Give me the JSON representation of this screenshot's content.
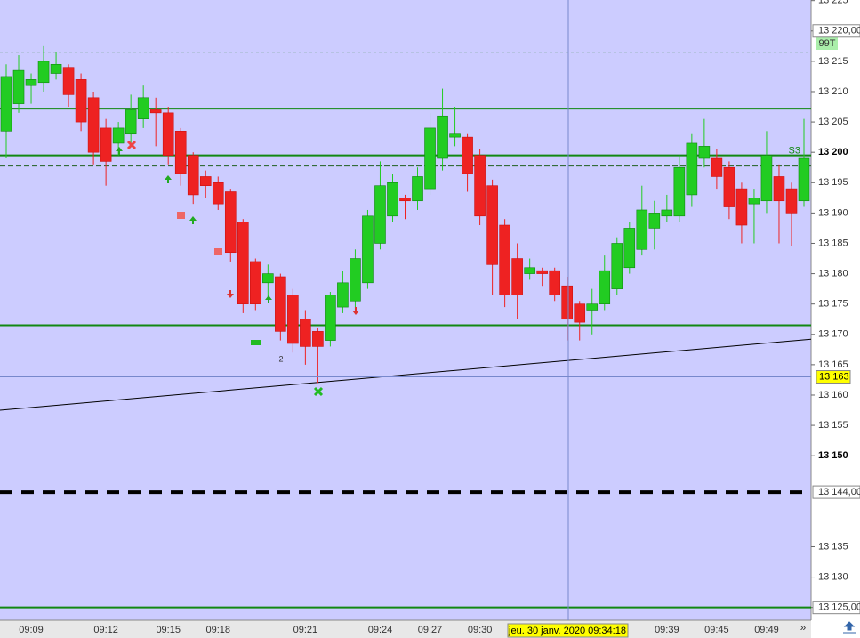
{
  "chart_data": {
    "type": "candlestick",
    "bar_period": "99T",
    "up_color": "#22cc22",
    "down_color": "#ee2222",
    "categories": [
      null,
      null,
      "09:09",
      null,
      null,
      null,
      null,
      null,
      "09:12",
      null,
      null,
      null,
      null,
      "09:15",
      null,
      null,
      null,
      "09:18",
      null,
      null,
      null,
      null,
      null,
      null,
      "09:21",
      null,
      null,
      null,
      null,
      null,
      "09:24",
      null,
      null,
      null,
      "09:27",
      null,
      null,
      null,
      "09:30",
      null,
      null,
      null,
      null,
      null,
      null,
      null,
      null,
      null,
      null,
      null,
      null,
      null,
      null,
      "09:39",
      null,
      null,
      null,
      "09:45",
      null,
      null,
      null,
      "09:49",
      null,
      null,
      null
    ],
    "open": [
      13203.5,
      13208,
      13211,
      13211.5,
      13213,
      13214,
      13212,
      13209,
      13204,
      13201.5,
      13203,
      13205.5,
      13207,
      13206.5,
      13203.5,
      13199.5,
      13196,
      13195,
      13193.5,
      13188.5,
      13182,
      13178.5,
      13179.5,
      13176.5,
      13172.5,
      13170.5,
      13169,
      13174.5,
      13175.5,
      13178.5,
      13185,
      13189.5,
      13192.5,
      13192,
      13194,
      13199,
      13202.5,
      13202.5,
      13199.5,
      13194.5,
      13188,
      13182.5,
      13180,
      13180.5,
      13180.5,
      13178,
      13175,
      13174,
      13175,
      13177.5,
      13181,
      13184,
      13187.5,
      13189.5,
      13189.5,
      13193,
      13199,
      13199,
      13197.5,
      13194,
      13191.5,
      13192,
      13196,
      13194,
      13192
    ],
    "high": [
      13214.5,
      13216,
      13213,
      13217.5,
      13216.5,
      13214.5,
      13213,
      13210,
      13205.5,
      13205,
      13209.5,
      13211,
      13209,
      13207.5,
      13204,
      13200,
      13197,
      13196,
      13194,
      13189,
      13182.5,
      13181.5,
      13180,
      13177.5,
      13174,
      13171,
      13177,
      13180.5,
      13184,
      13190.5,
      13198.5,
      13196.5,
      13193,
      13197.5,
      13206.5,
      13210.5,
      13207.5,
      13203,
      13200.5,
      13195.5,
      13189,
      13185,
      13182.5,
      13181,
      13181,
      13179.5,
      13175.5,
      13177.5,
      13183,
      13186,
      13188.5,
      13194.5,
      13192,
      13193,
      13199.5,
      13203,
      13205.5,
      13200.5,
      13198.5,
      13195,
      13194,
      13203.5,
      13198,
      13195,
      13205.5
    ],
    "low": [
      13199,
      13206.5,
      13208,
      13210,
      13212,
      13207.5,
      13203.5,
      13198,
      13194.5,
      13199.5,
      13201,
      13204,
      13201,
      13198,
      13194.5,
      13191.5,
      13192.5,
      13190.5,
      13182,
      13173.5,
      13174,
      13176,
      13169,
      13167,
      13165,
      13162,
      13168,
      13173.5,
      13174,
      13177.5,
      13184,
      13188.5,
      13189,
      13190.5,
      13193,
      13197,
      13201,
      13193.5,
      13188,
      13176.5,
      13174.5,
      13172.5,
      13179,
      13178,
      13175.5,
      13169,
      13169,
      13170,
      13174,
      13176.5,
      13180,
      13183,
      13184,
      13188.5,
      13188.5,
      13191,
      13197.5,
      13194,
      13189,
      13185,
      13185,
      13190,
      13185,
      13184.5,
      13191
    ],
    "close": [
      13212.5,
      13213.5,
      13212,
      13215,
      13214.5,
      13209.5,
      13205,
      13200,
      13198.5,
      13204,
      13207,
      13209,
      13206.5,
      13199.5,
      13196.5,
      13193,
      13194.5,
      13191.5,
      13183.5,
      13175,
      13175,
      13180,
      13170.5,
      13168.5,
      13168,
      13168,
      13176.5,
      13178.5,
      13182.5,
      13189.5,
      13194.5,
      13195,
      13192,
      13196,
      13204,
      13206,
      13203,
      13196.5,
      13189.5,
      13181.5,
      13176.5,
      13176.5,
      13181,
      13180,
      13176.5,
      13172.5,
      13172,
      13175,
      13180.5,
      13185,
      13187.5,
      13190.5,
      13190,
      13190.5,
      13197.5,
      13201.5,
      13201,
      13196,
      13191,
      13188,
      13192.5,
      13199.5,
      13192,
      13190,
      13199
    ],
    "ylim": [
      13122.9,
      13225.1
    ],
    "yticks": [
      {
        "value": 13225,
        "label": "13 225"
      },
      {
        "value": 13220,
        "label": "13 220,00",
        "boxed": true
      },
      {
        "value": 13215,
        "label": "13 215"
      },
      {
        "value": 13210,
        "label": "13 210"
      },
      {
        "value": 13205,
        "label": "13 205"
      },
      {
        "value": 13200,
        "label": "13 200",
        "bold": true
      },
      {
        "value": 13195,
        "label": "13 195"
      },
      {
        "value": 13190,
        "label": "13 190"
      },
      {
        "value": 13185,
        "label": "13 185"
      },
      {
        "value": 13180,
        "label": "13 180"
      },
      {
        "value": 13175,
        "label": "13 175"
      },
      {
        "value": 13170,
        "label": "13 170"
      },
      {
        "value": 13165,
        "label": "13 165"
      },
      {
        "value": 13160,
        "label": "13 160"
      },
      {
        "value": 13155,
        "label": "13 155"
      },
      {
        "value": 13150,
        "label": "13 150",
        "bold": true
      },
      {
        "value": 13135,
        "label": "13 135"
      },
      {
        "value": 13130,
        "label": "13 130"
      },
      {
        "value": 13125,
        "label": "13 125,00",
        "boxed": true
      }
    ],
    "levels": [
      {
        "value": 13216.5,
        "color": "#1a7a1a",
        "style": "dashed"
      },
      {
        "value": 13207.2,
        "color": "#118811",
        "style": "solid"
      },
      {
        "value": 13199.5,
        "color": "#118811",
        "style": "solid",
        "label": "S3"
      },
      {
        "value": 13197.8,
        "color": "#1f5f1f",
        "style": "bold-dashed"
      },
      {
        "value": 13171.5,
        "color": "#118811",
        "style": "solid"
      },
      {
        "value": 13144,
        "color": "#000000",
        "style": "heavy-dashed",
        "axis_label": "13 144,00"
      },
      {
        "value": 13125,
        "color": "#118811",
        "style": "solid"
      }
    ],
    "trendline": {
      "from": 13157.5,
      "to": 13169.2,
      "color": "#000000"
    },
    "crosshair": {
      "x_label": "jeu. 30 janv. 2020 09:34:18",
      "y": 13163,
      "y_label": "13 163"
    },
    "annotations": [
      "2"
    ]
  }
}
